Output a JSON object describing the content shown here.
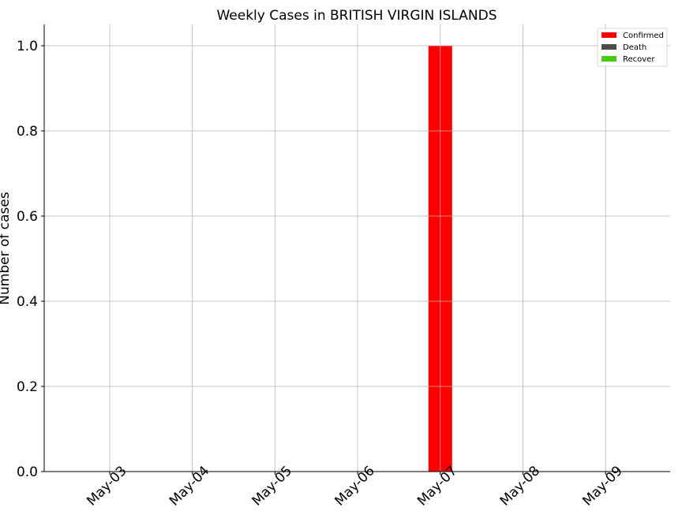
{
  "chart_data": {
    "type": "bar",
    "title": "Weekly Cases in BRITISH VIRGIN ISLANDS",
    "ylabel": "Number of cases",
    "xlabel": "",
    "categories": [
      "May-03",
      "May-04",
      "May-05",
      "May-06",
      "May-07",
      "May-08",
      "May-09"
    ],
    "series": [
      {
        "name": "Confirmed",
        "color": "#ff0000",
        "values": [
          0,
          0,
          0,
          0,
          1,
          0,
          0
        ]
      },
      {
        "name": "Death",
        "color": "#4d4d4d",
        "values": [
          0,
          0,
          0,
          0,
          0,
          0,
          0
        ]
      },
      {
        "name": "Recover",
        "color": "#44cc11",
        "values": [
          0,
          0,
          0,
          0,
          0,
          0,
          0
        ]
      }
    ],
    "ylim": [
      0,
      1.05
    ],
    "yticks": [
      "0.0",
      "0.2",
      "0.4",
      "0.6",
      "0.8",
      "1.0"
    ],
    "grid": true,
    "legend_position": "top-right"
  }
}
